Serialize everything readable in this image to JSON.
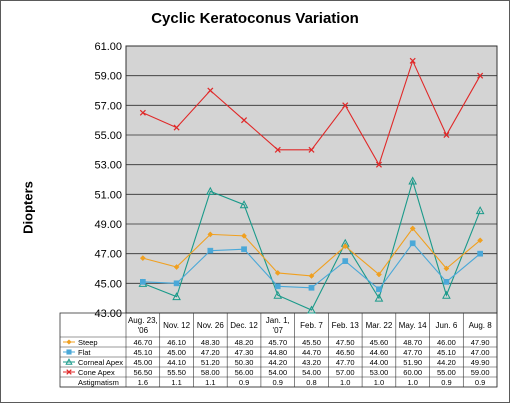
{
  "chart_data": {
    "type": "line",
    "title": "Cyclic Keratoconus Variation",
    "ylabel": "Diopters",
    "xlabel": "",
    "ylim": [
      43,
      61
    ],
    "yticks": [
      "43.00",
      "45.00",
      "47.00",
      "49.00",
      "51.00",
      "53.00",
      "55.00",
      "57.00",
      "59.00",
      "61.00"
    ],
    "grid": true,
    "categories": [
      [
        "Aug. 23,",
        "'06"
      ],
      [
        "Nov. 12"
      ],
      [
        "Nov. 26"
      ],
      [
        "Dec. 12"
      ],
      [
        "Jan. 1,",
        "'07"
      ],
      [
        "Feb. 7"
      ],
      [
        "Feb. 13"
      ],
      [
        "Mar. 22"
      ],
      [
        "May. 14"
      ],
      [
        "Jun. 6"
      ],
      [
        "Aug. 8"
      ]
    ],
    "series": [
      {
        "name": "Steep",
        "color": "#f0a020",
        "marker": "diamond",
        "values": [
          46.7,
          46.1,
          48.3,
          48.2,
          45.7,
          45.5,
          47.5,
          45.6,
          48.7,
          46.0,
          47.9
        ],
        "labels": [
          "46.70",
          "46.10",
          "48.30",
          "48.20",
          "45.70",
          "45.50",
          "47.50",
          "45.60",
          "48.70",
          "46.00",
          "47.90"
        ]
      },
      {
        "name": "Flat",
        "color": "#4aa8d8",
        "marker": "square",
        "values": [
          45.1,
          45.0,
          47.2,
          47.3,
          44.8,
          44.7,
          46.5,
          44.6,
          47.7,
          45.1,
          47.0
        ],
        "labels": [
          "45.10",
          "45.00",
          "47.20",
          "47.30",
          "44.80",
          "44.70",
          "46.50",
          "44.60",
          "47.70",
          "45.10",
          "47.00"
        ]
      },
      {
        "name": "Corneal Apex",
        "color": "#1a9a8a",
        "marker": "triangle",
        "values": [
          45.0,
          44.1,
          51.2,
          50.3,
          44.2,
          43.2,
          47.7,
          44.0,
          51.9,
          44.2,
          49.9
        ],
        "labels": [
          "45.00",
          "44.10",
          "51.20",
          "50.30",
          "44.20",
          "43.20",
          "47.70",
          "44.00",
          "51.90",
          "44.20",
          "49.90"
        ]
      },
      {
        "name": "Cone Apex",
        "color": "#e02828",
        "marker": "x",
        "values": [
          56.5,
          55.5,
          58.0,
          56.0,
          54.0,
          54.0,
          57.0,
          53.0,
          60.0,
          55.0,
          59.0
        ],
        "labels": [
          "56.50",
          "55.50",
          "58.00",
          "56.00",
          "54.00",
          "54.00",
          "57.00",
          "53.00",
          "60.00",
          "55.00",
          "59.00"
        ]
      }
    ],
    "extra_rows": [
      {
        "name": "Astigmatism",
        "labels": [
          "1.6",
          "1.1",
          "1.1",
          "0.9",
          "0.9",
          "0.8",
          "1.0",
          "1.0",
          "1.0",
          "0.9",
          "0.9"
        ]
      }
    ],
    "colors": {
      "plot_background": "#d4d4d4",
      "gridline": "#2e2e2e"
    }
  }
}
